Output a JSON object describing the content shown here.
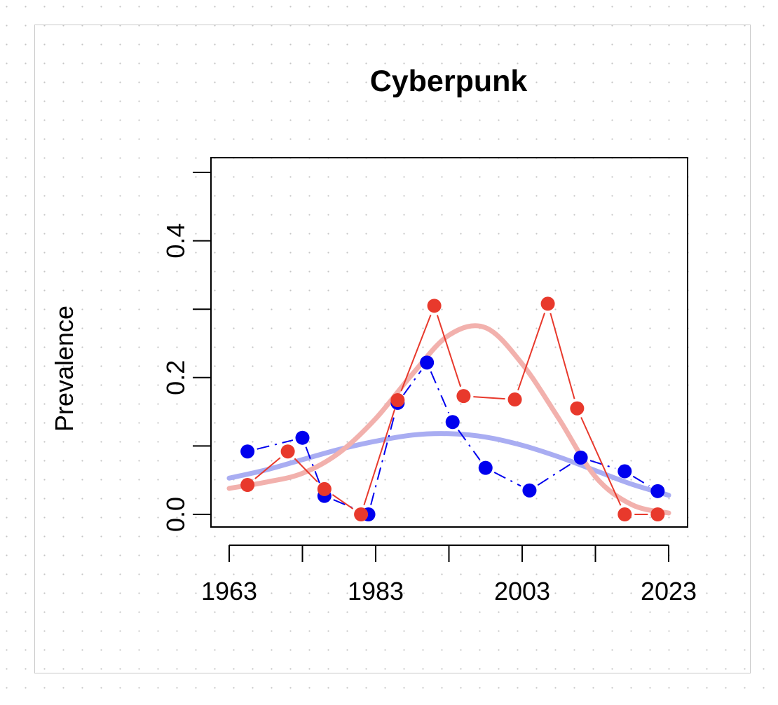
{
  "chart_data": {
    "type": "line",
    "title": "Cyberpunk",
    "xlabel": "",
    "ylabel": "Prevalence",
    "xlim": [
      1963,
      2023
    ],
    "ylim": [
      0,
      0.5
    ],
    "x_ticks": [
      1963,
      1973,
      1983,
      1993,
      2003,
      2013,
      2023
    ],
    "x_tick_labels": [
      "1963",
      "1983",
      "2003",
      "2023"
    ],
    "y_ticks": [
      0,
      0.1,
      0.2,
      0.3,
      0.4,
      0.5
    ],
    "y_tick_labels": [
      "0.0",
      "0.2",
      "0.4"
    ],
    "grid": false,
    "series": [
      {
        "color": "#0000ee",
        "line_style": "dashdot",
        "x": [
          1965.5,
          1973,
          1976,
          1982,
          1986,
          1990,
          1993.5,
          1998,
          2004,
          2011,
          2017,
          2021.5
        ],
        "values": [
          0.092,
          0.112,
          0.027,
          0.0,
          0.163,
          0.222,
          0.135,
          0.068,
          0.035,
          0.083,
          0.063,
          0.034
        ],
        "trend": [
          0.053,
          0.065,
          0.08,
          0.095,
          0.107,
          0.116,
          0.118,
          0.113,
          0.101,
          0.084,
          0.064,
          0.044,
          0.028
        ],
        "trend_color": "#a9adf2"
      },
      {
        "color": "#e8392c",
        "line_style": "solid",
        "x": [
          1965.5,
          1971,
          1976,
          1981,
          1986,
          1991,
          1995,
          2002,
          2006.5,
          2010.5,
          2017,
          2021.5
        ],
        "values": [
          0.043,
          0.092,
          0.037,
          0.0,
          0.167,
          0.305,
          0.173,
          0.168,
          0.308,
          0.155,
          0.0,
          0.0
        ],
        "trend": [
          0.038,
          0.047,
          0.06,
          0.09,
          0.14,
          0.205,
          0.262,
          0.273,
          0.22,
          0.14,
          0.055,
          0.014,
          0.002
        ],
        "trend_color": "#f2b1ad"
      }
    ],
    "trend_x": [
      1963,
      1968,
      1973,
      1978,
      1983,
      1988,
      1993,
      1998,
      2003,
      2008,
      2013,
      2018,
      2023
    ]
  }
}
